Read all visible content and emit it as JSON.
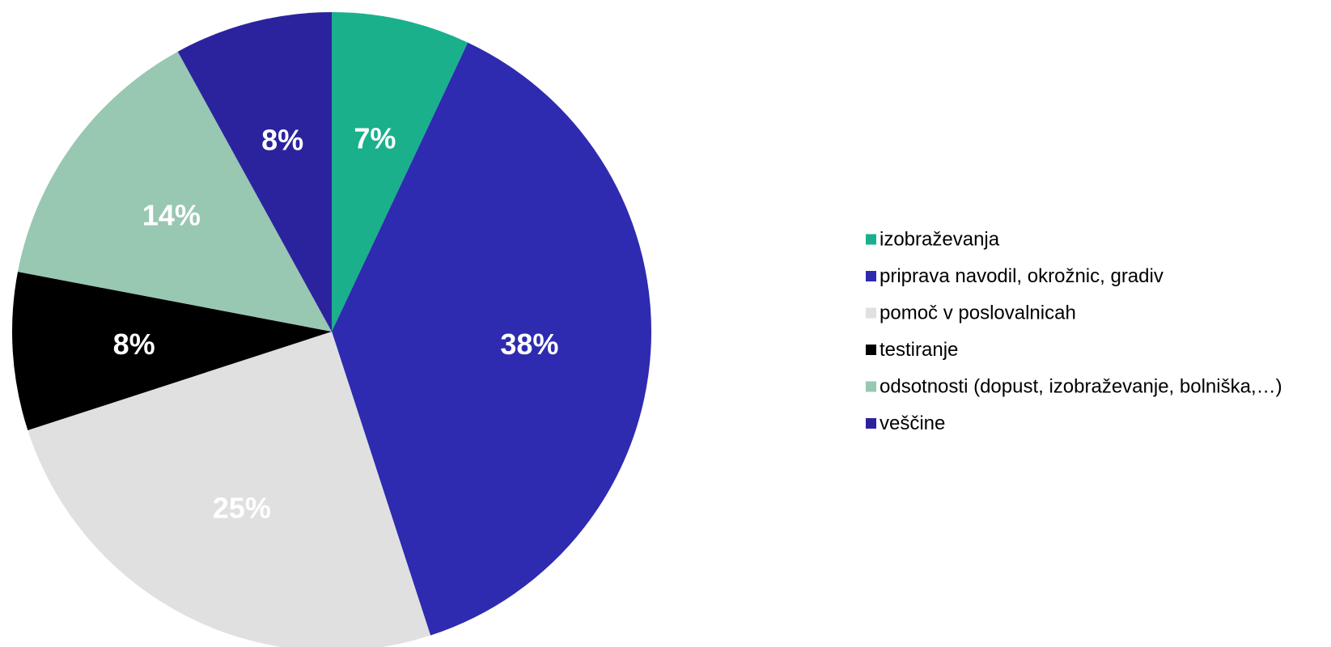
{
  "chart_data": {
    "type": "pie",
    "start_angle_deg": 0,
    "direction": "clockwise",
    "legend_position": "right",
    "slices": [
      {
        "label": "izobraževanja",
        "value": 7,
        "value_label": "7%",
        "color": "#1AB08C",
        "label_color": "#ffffff"
      },
      {
        "label": "priprava navodil, okrožnic, gradiv",
        "value": 38,
        "value_label": "38%",
        "color": "#2E2BB0",
        "label_color": "#ffffff"
      },
      {
        "label": "pomoč v poslovalnicah",
        "value": 25,
        "value_label": "25%",
        "color": "#E0E0E0",
        "label_color": "#ffffff"
      },
      {
        "label": "testiranje",
        "value": 8,
        "value_label": "8%",
        "color": "#000000",
        "label_color": "#ffffff"
      },
      {
        "label": "odsotnosti (dopust, izobraževanje, bolniška,…)",
        "value": 14,
        "value_label": "14%",
        "color": "#98C7B2",
        "label_color": "#ffffff"
      },
      {
        "label": "veščine",
        "value": 8,
        "value_label": "8%",
        "color": "#2B239E",
        "label_color": "#ffffff"
      }
    ]
  }
}
